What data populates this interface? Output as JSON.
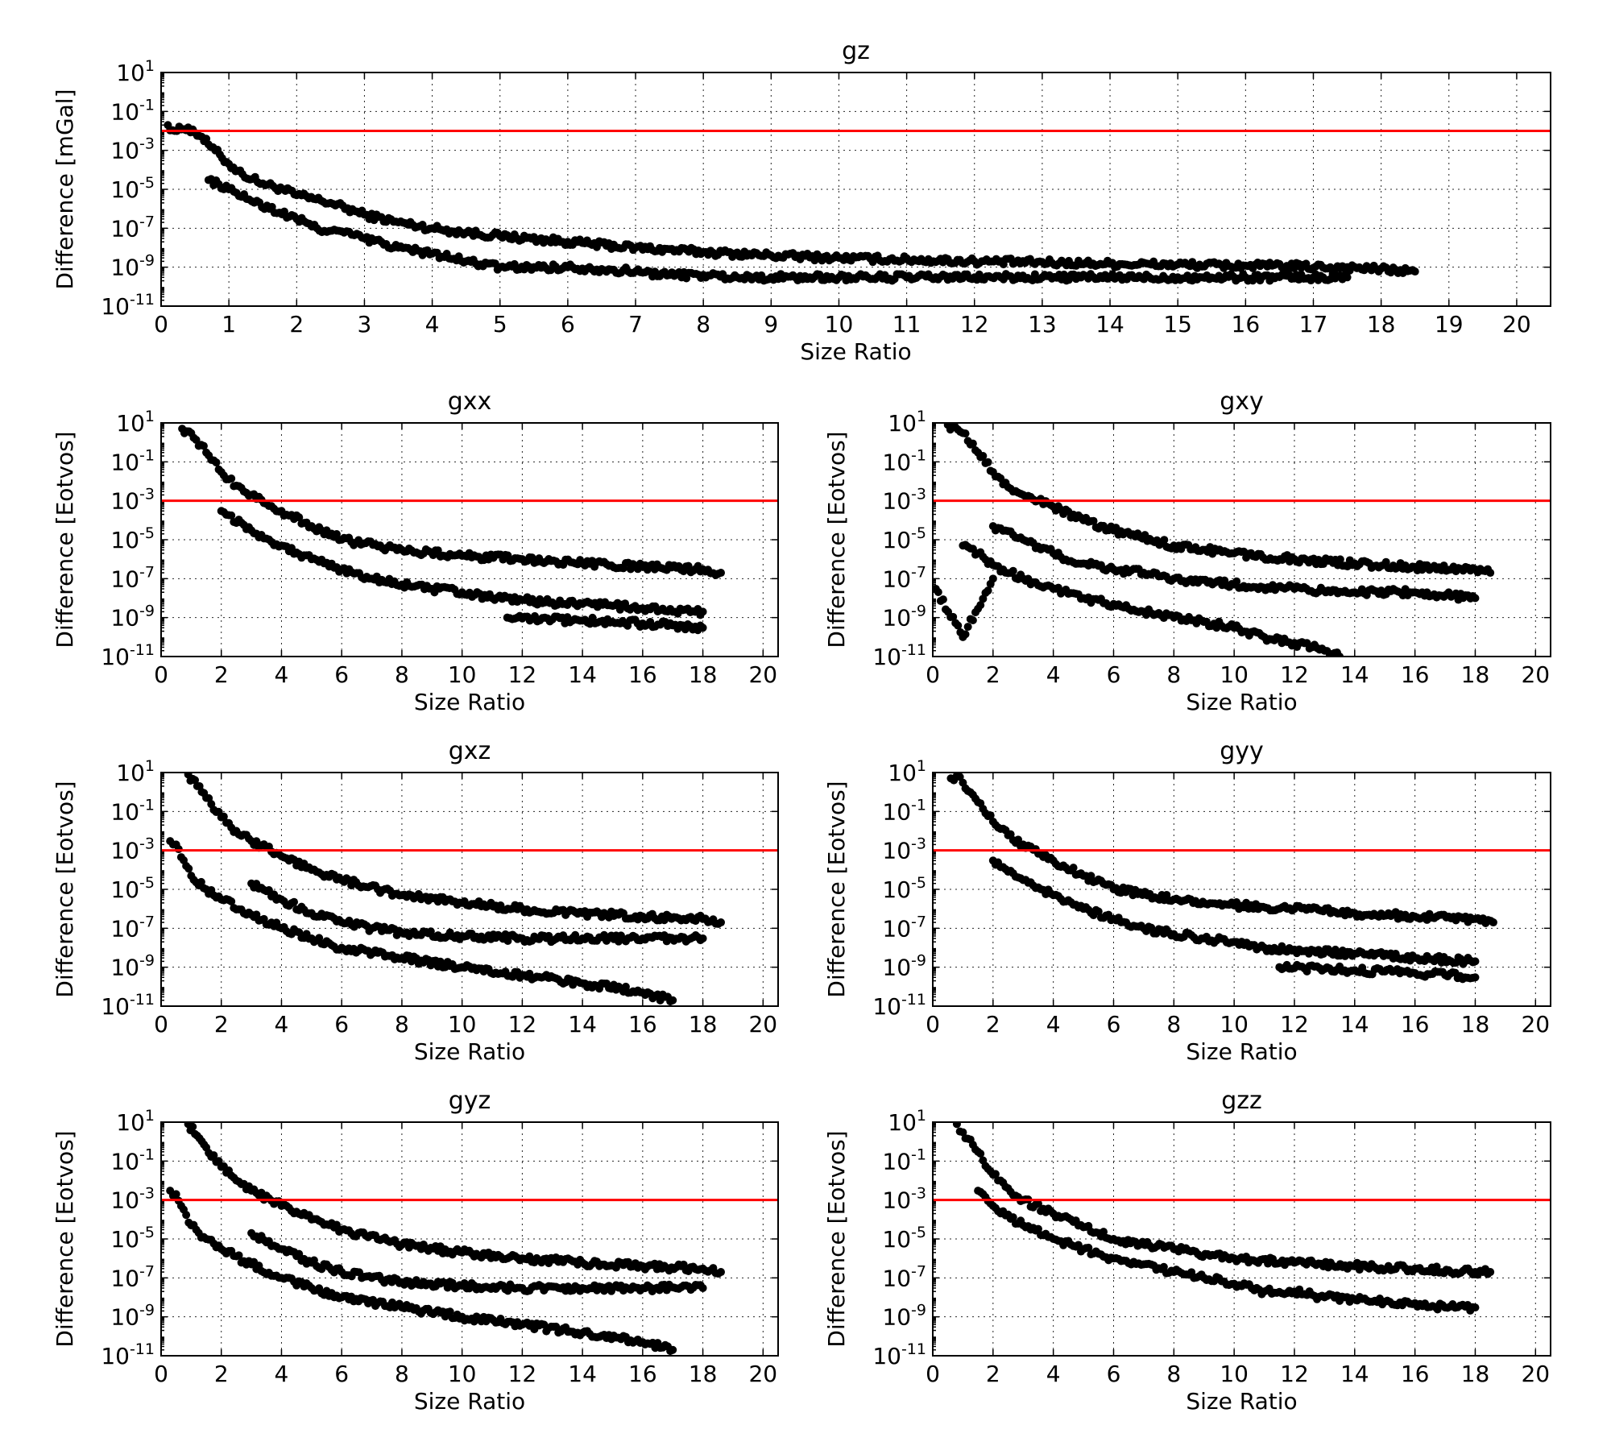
{
  "colors": {
    "points": "#000000",
    "reference_line": "#ff0000",
    "background": "#ffffff"
  },
  "chart_data": [
    {
      "type": "scatter",
      "title": "gz",
      "xlabel": "Size Ratio",
      "ylabel": "Difference [mGal]",
      "xlim": [
        0,
        20.5
      ],
      "x_ticks": [
        "0",
        "1",
        "2",
        "3",
        "4",
        "5",
        "6",
        "7",
        "8",
        "9",
        "10",
        "11",
        "12",
        "13",
        "14",
        "15",
        "16",
        "17",
        "18",
        "19",
        "20"
      ],
      "ylim": [
        1e-11,
        10
      ],
      "y_scale": "log",
      "y_tick_exponents": [
        "1",
        "-1",
        "-3",
        "-5",
        "-7",
        "-9",
        "-11"
      ],
      "grid": true,
      "reference_line_y": 0.01,
      "series": [
        {
          "x": [
            0.1,
            0.2,
            0.3,
            0.4,
            0.5,
            0.6,
            0.7,
            0.8,
            0.9,
            1,
            1.2,
            1.5,
            1.8,
            2,
            2.5,
            3,
            3.5,
            4,
            4.5,
            5,
            6,
            7,
            8,
            9,
            10,
            12,
            14,
            16,
            17.5,
            18.5
          ],
          "y": [
            0.02,
            0.01,
            0.012,
            0.015,
            0.008,
            0.005,
            0.002,
            0.001,
            0.0004,
            0.0002,
            6e-05,
            2e-05,
            1e-05,
            5e-06,
            2e-06,
            5e-07,
            2e-07,
            1e-07,
            6e-08,
            4e-08,
            2e-08,
            1e-08,
            6e-09,
            4e-09,
            3e-09,
            2e-09,
            1.5e-09,
            1.2e-09,
            1e-09,
            6e-10
          ]
        },
        {
          "x": [
            0.7,
            1,
            1.3,
            1.6,
            2,
            2.3,
            2.7,
            3,
            3.5,
            4,
            4.5,
            5,
            5.5,
            6,
            6.5,
            7,
            7.5,
            8,
            8.5,
            9,
            10,
            11,
            12,
            13,
            14,
            15,
            16,
            17,
            17.5
          ],
          "y": [
            3e-05,
            1e-05,
            3e-06,
            1e-06,
            3e-07,
            1e-07,
            6e-08,
            3e-08,
            1e-08,
            5e-09,
            2e-09,
            1e-09,
            1e-09,
            1e-09,
            8e-10,
            6e-10,
            4e-10,
            4e-10,
            3e-10,
            3e-10,
            3e-10,
            3e-10,
            3e-10,
            3e-10,
            3e-10,
            3e-10,
            3e-10,
            3e-10,
            3e-10
          ]
        }
      ]
    },
    {
      "type": "scatter",
      "title": "gxx",
      "xlabel": "Size Ratio",
      "ylabel": "Difference [Eotvos]",
      "xlim": [
        0,
        20.5
      ],
      "x_ticks": [
        "0",
        "2",
        "4",
        "6",
        "8",
        "10",
        "12",
        "14",
        "16",
        "18",
        "20"
      ],
      "ylim": [
        1e-11,
        10
      ],
      "y_scale": "log",
      "y_tick_exponents": [
        "1",
        "-1",
        "-3",
        "-5",
        "-7",
        "-9",
        "-11"
      ],
      "grid": true,
      "reference_line_y": 0.001,
      "series": [
        {
          "x": [
            0.7,
            1,
            1.5,
            2,
            2.5,
            3,
            4,
            5,
            6,
            8,
            10,
            12,
            14,
            16,
            18,
            18.6
          ],
          "y": [
            5,
            3,
            0.3,
            0.03,
            0.006,
            0.002,
            0.0003,
            5e-05,
            1e-05,
            3e-06,
            1.5e-06,
            1e-06,
            6e-07,
            4e-07,
            3e-07,
            2e-07
          ]
        },
        {
          "x": [
            2,
            3,
            4,
            5,
            6,
            7,
            8,
            9,
            10,
            11,
            12,
            13,
            14,
            15,
            16,
            17,
            18
          ],
          "y": [
            0.0003,
            3e-05,
            5e-06,
            1e-06,
            3e-07,
            1e-07,
            5e-08,
            3e-08,
            2e-08,
            1e-08,
            8e-09,
            6e-09,
            5e-09,
            4e-09,
            3e-09,
            2e-09,
            2e-09
          ]
        },
        {
          "x": [
            11.5,
            12,
            13,
            14,
            15,
            16,
            17,
            18
          ],
          "y": [
            1e-09,
            9e-10,
            8e-10,
            7e-10,
            6e-10,
            5e-10,
            4e-10,
            3e-10
          ]
        }
      ]
    },
    {
      "type": "scatter",
      "title": "gxy",
      "xlabel": "Size Ratio",
      "ylabel": "Difference [Eotvos]",
      "xlim": [
        0,
        20.5
      ],
      "x_ticks": [
        "0",
        "2",
        "4",
        "6",
        "8",
        "10",
        "12",
        "14",
        "16",
        "18",
        "20"
      ],
      "ylim": [
        1e-11,
        10
      ],
      "y_scale": "log",
      "y_tick_exponents": [
        "1",
        "-1",
        "-3",
        "-5",
        "-7",
        "-9",
        "-11"
      ],
      "grid": true,
      "reference_line_y": 0.001,
      "series": [
        {
          "x": [
            0.5,
            1,
            1.5,
            2,
            2.5,
            3,
            4,
            5,
            6,
            8,
            10,
            12,
            14,
            16,
            18,
            18.5
          ],
          "y": [
            8,
            3,
            0.3,
            0.03,
            0.005,
            0.002,
            0.0005,
            0.0001,
            3e-05,
            5e-06,
            2e-06,
            1e-06,
            6e-07,
            4e-07,
            3e-07,
            2e-07
          ]
        },
        {
          "x": [
            2,
            3,
            4,
            5,
            6,
            7,
            8,
            10,
            12,
            14,
            16,
            18
          ],
          "y": [
            5e-05,
            1e-05,
            2e-06,
            6e-07,
            3e-07,
            2e-07,
            1e-07,
            5e-08,
            3e-08,
            2e-08,
            2e-08,
            1e-08
          ]
        },
        {
          "x": [
            1,
            1.5,
            2,
            3,
            4,
            5,
            6,
            7,
            8,
            9,
            10,
            11,
            12,
            13,
            13.5
          ],
          "y": [
            5e-06,
            2e-06,
            5e-07,
            1e-07,
            3e-08,
            1e-08,
            5e-09,
            2e-09,
            1e-09,
            6e-10,
            3e-10,
            1e-10,
            5e-11,
            2e-11,
            1e-11
          ]
        },
        {
          "x": [
            0.1,
            1,
            2
          ],
          "y": [
            3e-08,
            1e-10,
            1e-07
          ]
        }
      ]
    },
    {
      "type": "scatter",
      "title": "gxz",
      "xlabel": "Size Ratio",
      "ylabel": "Difference [Eotvos]",
      "xlim": [
        0,
        20.5
      ],
      "x_ticks": [
        "0",
        "2",
        "4",
        "6",
        "8",
        "10",
        "12",
        "14",
        "16",
        "18",
        "20"
      ],
      "ylim": [
        1e-11,
        10
      ],
      "y_scale": "log",
      "y_tick_exponents": [
        "1",
        "-1",
        "-3",
        "-5",
        "-7",
        "-9",
        "-11"
      ],
      "grid": true,
      "reference_line_y": 0.001,
      "series": [
        {
          "x": [
            0.9,
            1.2,
            1.5,
            2,
            2.5,
            3,
            4,
            5,
            6,
            8,
            10,
            12,
            14,
            16,
            18,
            18.6
          ],
          "y": [
            8,
            2,
            0.5,
            0.05,
            0.01,
            0.003,
            0.0005,
            0.0001,
            3e-05,
            5e-06,
            2e-06,
            1e-06,
            6e-07,
            4e-07,
            3e-07,
            2e-07
          ]
        },
        {
          "x": [
            3,
            4,
            5,
            6,
            7,
            8,
            10,
            12,
            14,
            16,
            18
          ],
          "y": [
            2e-05,
            3e-06,
            6e-07,
            2e-07,
            1e-07,
            6e-08,
            4e-08,
            3e-08,
            3e-08,
            3e-08,
            3e-08
          ]
        },
        {
          "x": [
            0.3,
            0.5,
            1,
            1.5,
            2,
            3,
            4,
            5,
            6,
            8,
            10,
            12,
            14,
            16,
            17
          ],
          "y": [
            0.003,
            0.002,
            5e-05,
            1e-05,
            3e-06,
            5e-07,
            1e-07,
            3e-08,
            1e-08,
            3e-09,
            1e-09,
            4e-10,
            1.5e-10,
            5e-11,
            2e-11
          ]
        }
      ]
    },
    {
      "type": "scatter",
      "title": "gyy",
      "xlabel": "Size Ratio",
      "ylabel": "Difference [Eotvos]",
      "xlim": [
        0,
        20.5
      ],
      "x_ticks": [
        "0",
        "2",
        "4",
        "6",
        "8",
        "10",
        "12",
        "14",
        "16",
        "18",
        "20"
      ],
      "ylim": [
        1e-11,
        10
      ],
      "y_scale": "log",
      "y_tick_exponents": [
        "1",
        "-1",
        "-3",
        "-5",
        "-7",
        "-9",
        "-11"
      ],
      "grid": true,
      "reference_line_y": 0.001,
      "series": [
        {
          "x": [
            0.6,
            0.8,
            1,
            1.5,
            2,
            2.5,
            3,
            4,
            5,
            6,
            8,
            10,
            12,
            14,
            16,
            18,
            18.6
          ],
          "y": [
            5,
            7,
            3,
            0.3,
            0.03,
            0.006,
            0.002,
            0.0003,
            5e-05,
            1e-05,
            3e-06,
            1.5e-06,
            1e-06,
            6e-07,
            4e-07,
            3e-07,
            2e-07
          ]
        },
        {
          "x": [
            2,
            3,
            4,
            5,
            6,
            7,
            8,
            9,
            10,
            11,
            12,
            14,
            16,
            18
          ],
          "y": [
            0.0003,
            3e-05,
            5e-06,
            1e-06,
            3e-07,
            1e-07,
            5e-08,
            3e-08,
            2e-08,
            1e-08,
            8e-09,
            5e-09,
            3e-09,
            2e-09
          ]
        },
        {
          "x": [
            11.5,
            12,
            13,
            14,
            15,
            16,
            17,
            18
          ],
          "y": [
            1e-09,
            9e-10,
            8e-10,
            7e-10,
            6e-10,
            5e-10,
            4e-10,
            3e-10
          ]
        }
      ]
    },
    {
      "type": "scatter",
      "title": "gyz",
      "xlabel": "Size Ratio",
      "ylabel": "Difference [Eotvos]",
      "xlim": [
        0,
        20.5
      ],
      "x_ticks": [
        "0",
        "2",
        "4",
        "6",
        "8",
        "10",
        "12",
        "14",
        "16",
        "18",
        "20"
      ],
      "ylim": [
        1e-11,
        10
      ],
      "y_scale": "log",
      "y_tick_exponents": [
        "1",
        "-1",
        "-3",
        "-5",
        "-7",
        "-9",
        "-11"
      ],
      "grid": true,
      "reference_line_y": 0.001,
      "series": [
        {
          "x": [
            0.9,
            1.2,
            1.5,
            2,
            2.5,
            3,
            4,
            5,
            6,
            8,
            10,
            12,
            14,
            16,
            18,
            18.6
          ],
          "y": [
            8,
            2,
            0.5,
            0.05,
            0.01,
            0.003,
            0.0005,
            0.0001,
            3e-05,
            5e-06,
            2e-06,
            1e-06,
            6e-07,
            4e-07,
            3e-07,
            2e-07
          ]
        },
        {
          "x": [
            3,
            4,
            5,
            6,
            7,
            8,
            10,
            12,
            14,
            16,
            18
          ],
          "y": [
            2e-05,
            3e-06,
            6e-07,
            2e-07,
            1e-07,
            6e-08,
            4e-08,
            3e-08,
            3e-08,
            3e-08,
            3e-08
          ]
        },
        {
          "x": [
            0.3,
            0.5,
            1,
            1.5,
            2,
            3,
            4,
            5,
            6,
            8,
            10,
            12,
            14,
            16,
            17
          ],
          "y": [
            0.003,
            0.002,
            5e-05,
            1e-05,
            3e-06,
            5e-07,
            1e-07,
            3e-08,
            1e-08,
            3e-09,
            1e-09,
            4e-10,
            1.5e-10,
            5e-11,
            2e-11
          ]
        }
      ]
    },
    {
      "type": "scatter",
      "title": "gzz",
      "xlabel": "Size Ratio",
      "ylabel": "Difference [Eotvos]",
      "xlim": [
        0,
        20.5
      ],
      "x_ticks": [
        "0",
        "2",
        "4",
        "6",
        "8",
        "10",
        "12",
        "14",
        "16",
        "18",
        "20"
      ],
      "ylim": [
        1e-11,
        10
      ],
      "y_scale": "log",
      "y_tick_exponents": [
        "1",
        "-1",
        "-3",
        "-5",
        "-7",
        "-9",
        "-11"
      ],
      "grid": true,
      "reference_line_y": 0.001,
      "series": [
        {
          "x": [
            0.8,
            1,
            1.5,
            2,
            2.5,
            3,
            4,
            5,
            6,
            8,
            10,
            12,
            14,
            16,
            18,
            18.5
          ],
          "y": [
            8,
            3,
            0.3,
            0.02,
            0.004,
            0.001,
            0.0002,
            4e-05,
            1e-05,
            3e-06,
            1e-06,
            6e-07,
            4e-07,
            3e-07,
            2e-07,
            2e-07
          ]
        },
        {
          "x": [
            1.5,
            2,
            3,
            4,
            5,
            6,
            7,
            8,
            9,
            10,
            11,
            12,
            13,
            14,
            15,
            16,
            17,
            18
          ],
          "y": [
            0.003,
            0.0005,
            5e-05,
            1e-05,
            3e-06,
            1e-06,
            5e-07,
            2e-07,
            1e-07,
            5e-08,
            2e-08,
            2e-08,
            1e-08,
            8e-09,
            6e-09,
            5e-09,
            3e-09,
            3e-09
          ]
        }
      ]
    }
  ]
}
